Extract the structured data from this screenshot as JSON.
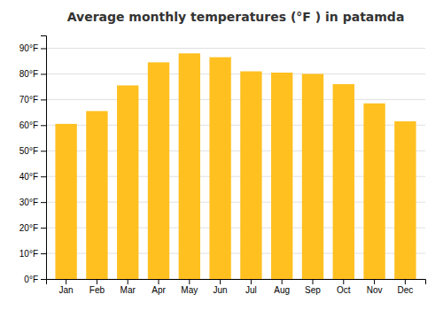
{
  "chart_data": {
    "type": "bar",
    "title": "Average monthly temperatures (°F ) in patamda",
    "categories": [
      "Jan",
      "Feb",
      "Mar",
      "Apr",
      "May",
      "Jun",
      "Jul",
      "Aug",
      "Sep",
      "Oct",
      "Nov",
      "Dec"
    ],
    "values": [
      60.5,
      65.5,
      75.5,
      84.5,
      88.0,
      86.5,
      81.0,
      80.5,
      80.0,
      76.0,
      68.5,
      61.5
    ],
    "color": "#FFC020",
    "ylim": [
      0,
      95
    ],
    "yticks": [
      {
        "value": 0,
        "label": "0°F"
      },
      {
        "value": 10,
        "label": "10°F"
      },
      {
        "value": 20,
        "label": "20°F"
      },
      {
        "value": 30,
        "label": "30°F"
      },
      {
        "value": 40,
        "label": "40°F"
      },
      {
        "value": 50,
        "label": "50°F"
      },
      {
        "value": 60,
        "label": "60°F"
      },
      {
        "value": 70,
        "label": "70°F"
      },
      {
        "value": 80,
        "label": "80°F"
      },
      {
        "value": 90,
        "label": "90°F"
      }
    ],
    "grid": true
  }
}
